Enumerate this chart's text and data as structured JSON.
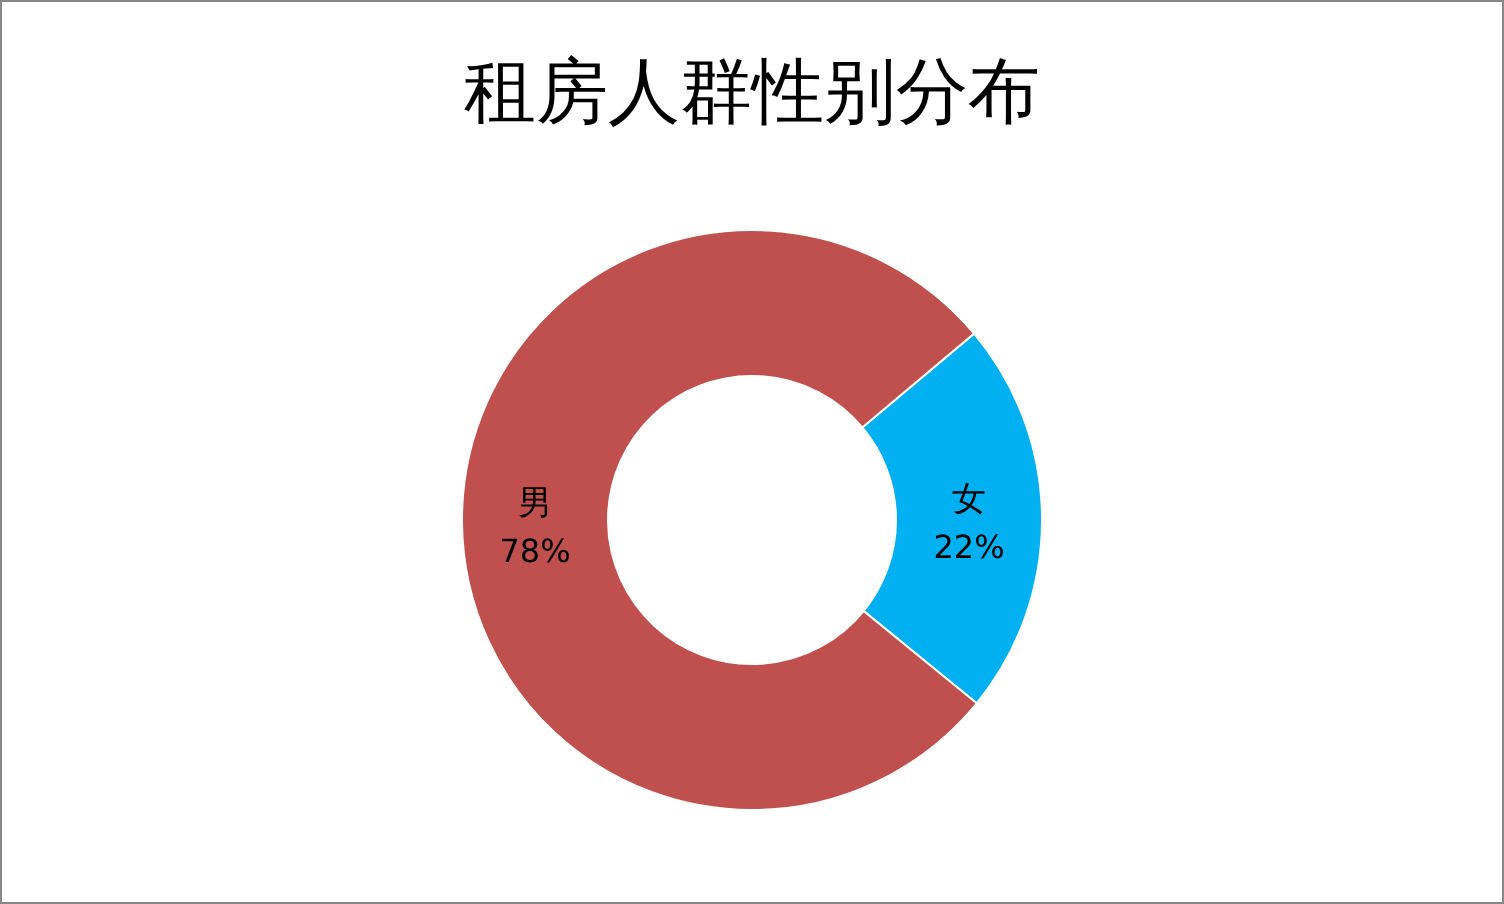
{
  "chart_data": {
    "type": "donut",
    "title": "租房人群性别分布",
    "categories": [
      "女",
      "男"
    ],
    "values": [
      22,
      78
    ],
    "colors": [
      "#00b0f0",
      "#c0504d"
    ],
    "value_labels": [
      "22%",
      "78%"
    ],
    "legend": false
  }
}
